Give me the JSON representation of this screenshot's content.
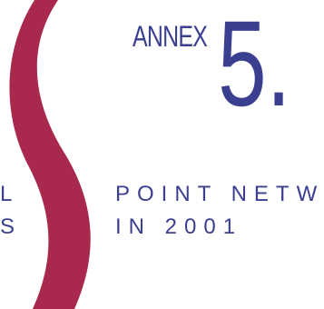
{
  "heading": {
    "annex_word": "ANNEX",
    "annex_number": "5."
  },
  "left_fragment": {
    "line1": "L",
    "line2": "S"
  },
  "title": {
    "line1": "POINT NETW",
    "line2": "IN 2001"
  },
  "colors": {
    "accent": "#3b3f8f",
    "swoosh": "#a8294d",
    "background": "#ffffff"
  }
}
